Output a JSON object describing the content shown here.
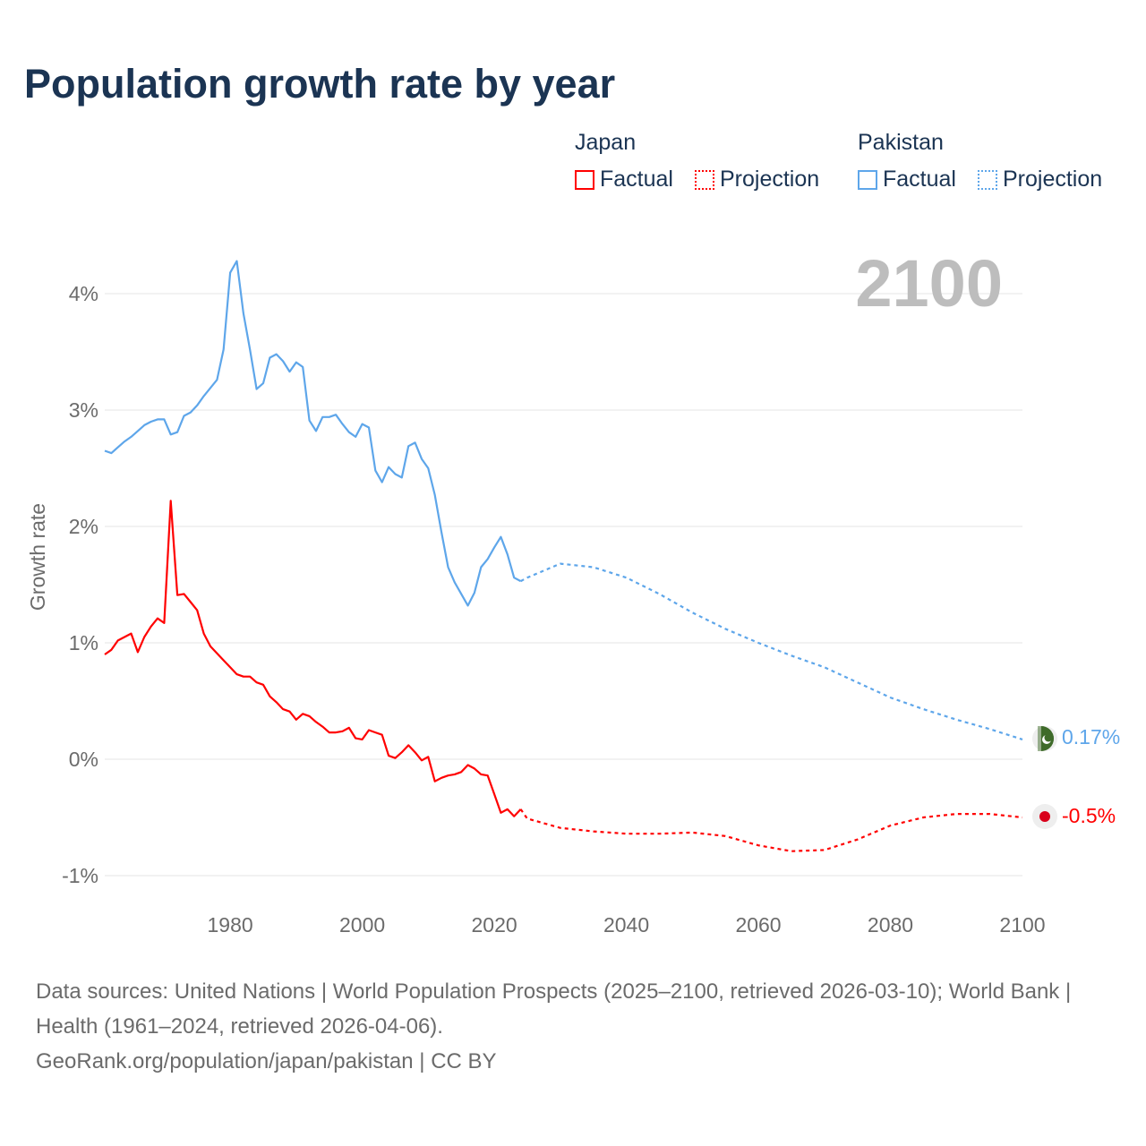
{
  "title": "Population growth rate by year",
  "legend": {
    "groups": [
      {
        "name": "Japan",
        "factual": "Factual",
        "projection": "Projection",
        "color": "#ff0000"
      },
      {
        "name": "Pakistan",
        "factual": "Factual",
        "projection": "Projection",
        "color": "#5ea6ea"
      }
    ]
  },
  "year_badge": "2100",
  "end_labels": {
    "pakistan": "0.17%",
    "japan": "-0.5%"
  },
  "markers": {
    "pakistan": "pakistan-flag-icon",
    "japan": "japan-flag-icon"
  },
  "footer": {
    "sources": "Data sources: United Nations | World Population Prospects (2025–2100, retrieved 2026-03-10); World Bank | Health (1961–2024, retrieved 2026-04-06).",
    "credit": "GeoRank.org/population/japan/pakistan | CC BY"
  },
  "chart_data": {
    "type": "line",
    "title": "Population growth rate by year",
    "xlabel": "",
    "ylabel": "Growth rate",
    "xlim": [
      1961,
      2100
    ],
    "ylim": [
      -1.2,
      4.4
    ],
    "x_ticks": [
      1980,
      2000,
      2020,
      2040,
      2060,
      2080,
      2100
    ],
    "x_tick_labels": [
      "1980",
      "2000",
      "2020",
      "2040",
      "2060",
      "2080",
      "2100"
    ],
    "y_ticks": [
      -1,
      0,
      1,
      2,
      3,
      4
    ],
    "y_tick_labels": [
      "-1%",
      "0%",
      "1%",
      "2%",
      "3%",
      "4%"
    ],
    "grid": true,
    "legend_position": "top-right",
    "series": [
      {
        "name": "Pakistan Factual",
        "color": "#5ea6ea",
        "dashed": false,
        "x": [
          1961,
          1962,
          1963,
          1964,
          1965,
          1966,
          1967,
          1968,
          1969,
          1970,
          1971,
          1972,
          1973,
          1974,
          1975,
          1976,
          1977,
          1978,
          1979,
          1980,
          1981,
          1982,
          1983,
          1984,
          1985,
          1986,
          1987,
          1988,
          1989,
          1990,
          1991,
          1992,
          1993,
          1994,
          1995,
          1996,
          1997,
          1998,
          1999,
          2000,
          2001,
          2002,
          2003,
          2004,
          2005,
          2006,
          2007,
          2008,
          2009,
          2010,
          2011,
          2012,
          2013,
          2014,
          2015,
          2016,
          2017,
          2018,
          2019,
          2020,
          2021,
          2022,
          2023,
          2024
        ],
        "values": [
          2.65,
          2.63,
          2.68,
          2.73,
          2.77,
          2.82,
          2.87,
          2.9,
          2.92,
          2.92,
          2.79,
          2.81,
          2.95,
          2.98,
          3.04,
          3.12,
          3.19,
          3.26,
          3.52,
          4.18,
          4.28,
          3.83,
          3.52,
          3.18,
          3.23,
          3.45,
          3.48,
          3.42,
          3.33,
          3.41,
          3.37,
          2.91,
          2.82,
          2.94,
          2.94,
          2.96,
          2.88,
          2.81,
          2.77,
          2.88,
          2.85,
          2.48,
          2.38,
          2.51,
          2.45,
          2.42,
          2.69,
          2.72,
          2.58,
          2.5,
          2.27,
          1.95,
          1.65,
          1.52,
          1.42,
          1.32,
          1.43,
          1.65,
          1.72,
          1.82,
          1.91,
          1.76,
          1.56,
          1.53
        ]
      },
      {
        "name": "Pakistan Projection",
        "color": "#5ea6ea",
        "dashed": true,
        "x": [
          2024,
          2025,
          2030,
          2035,
          2040,
          2045,
          2050,
          2055,
          2060,
          2065,
          2070,
          2075,
          2080,
          2085,
          2090,
          2095,
          2100
        ],
        "values": [
          1.53,
          1.56,
          1.68,
          1.65,
          1.56,
          1.42,
          1.26,
          1.12,
          1.0,
          0.89,
          0.79,
          0.66,
          0.53,
          0.43,
          0.34,
          0.26,
          0.17
        ]
      },
      {
        "name": "Japan Factual",
        "color": "#ff0000",
        "dashed": false,
        "x": [
          1961,
          1962,
          1963,
          1964,
          1965,
          1966,
          1967,
          1968,
          1969,
          1970,
          1971,
          1972,
          1973,
          1974,
          1975,
          1976,
          1977,
          1978,
          1979,
          1980,
          1981,
          1982,
          1983,
          1984,
          1985,
          1986,
          1987,
          1988,
          1989,
          1990,
          1991,
          1992,
          1993,
          1994,
          1995,
          1996,
          1997,
          1998,
          1999,
          2000,
          2001,
          2002,
          2003,
          2004,
          2005,
          2006,
          2007,
          2008,
          2009,
          2010,
          2011,
          2012,
          2013,
          2014,
          2015,
          2016,
          2017,
          2018,
          2019,
          2020,
          2021,
          2022,
          2023,
          2024
        ],
        "values": [
          0.9,
          0.94,
          1.02,
          1.05,
          1.08,
          0.92,
          1.05,
          1.14,
          1.21,
          1.17,
          2.22,
          1.41,
          1.42,
          1.35,
          1.28,
          1.08,
          0.97,
          0.91,
          0.85,
          0.79,
          0.73,
          0.71,
          0.71,
          0.66,
          0.64,
          0.54,
          0.49,
          0.43,
          0.41,
          0.34,
          0.39,
          0.37,
          0.32,
          0.28,
          0.23,
          0.23,
          0.24,
          0.27,
          0.18,
          0.17,
          0.25,
          0.23,
          0.21,
          0.03,
          0.01,
          0.06,
          0.12,
          0.06,
          -0.01,
          0.02,
          -0.19,
          -0.16,
          -0.14,
          -0.13,
          -0.11,
          -0.05,
          -0.08,
          -0.13,
          -0.14,
          -0.3,
          -0.46,
          -0.43,
          -0.49,
          -0.43
        ]
      },
      {
        "name": "Japan Projection",
        "color": "#ff0000",
        "dashed": true,
        "x": [
          2024,
          2025,
          2030,
          2035,
          2040,
          2045,
          2050,
          2055,
          2060,
          2065,
          2070,
          2075,
          2080,
          2085,
          2090,
          2095,
          2100
        ],
        "values": [
          -0.43,
          -0.51,
          -0.59,
          -0.62,
          -0.64,
          -0.64,
          -0.63,
          -0.66,
          -0.74,
          -0.79,
          -0.78,
          -0.69,
          -0.57,
          -0.5,
          -0.47,
          -0.47,
          -0.5
        ]
      }
    ]
  }
}
